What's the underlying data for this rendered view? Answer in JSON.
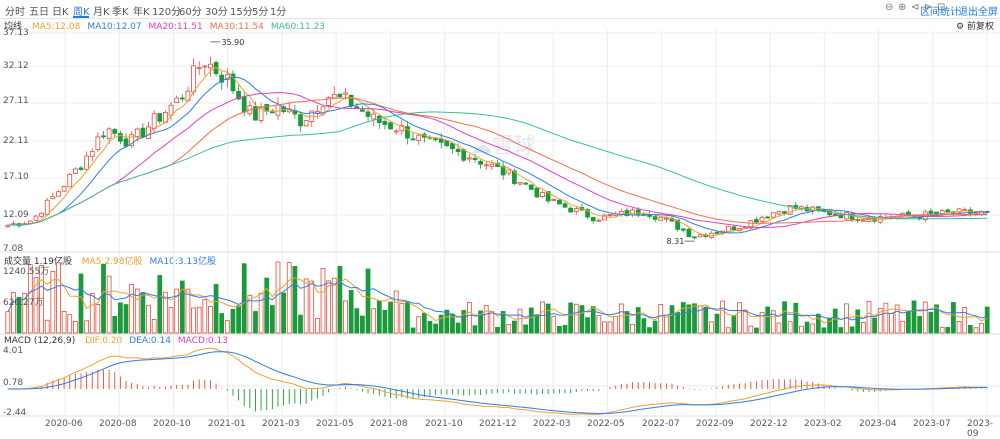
{
  "tabs": [
    {
      "label": "分时"
    },
    {
      "label": "五日"
    },
    {
      "label": "日K"
    },
    {
      "label": "周K",
      "active": true
    },
    {
      "label": "月K"
    },
    {
      "label": "季K"
    },
    {
      "label": "年K"
    },
    {
      "label": "120分"
    },
    {
      "label": "60分"
    },
    {
      "label": "30分"
    },
    {
      "label": "15分"
    },
    {
      "label": "5分"
    },
    {
      "label": "1分"
    }
  ],
  "toolbar": {
    "tool_icons": [
      "zoom-out-icon",
      "zoom-in-icon",
      "prev-icon",
      "next-icon",
      "fullscreen-icon"
    ],
    "stats_label": "区间统计",
    "exit_label": "退出全屏",
    "adjust_label": "前复权",
    "settings_icon": "gear-icon"
  },
  "price_panel": {
    "legend_title": "均线",
    "ma": [
      {
        "label": "MA5:12.08",
        "color": "#f0a030"
      },
      {
        "label": "MA10:12.07",
        "color": "#2f7ee6"
      },
      {
        "label": "MA20:11.51",
        "color": "#e040c0"
      },
      {
        "label": "MA30:11.54",
        "color": "#f07050"
      },
      {
        "label": "MA60:11.23",
        "color": "#3cc090"
      }
    ],
    "y_labels": [
      "37.13",
      "32.12",
      "27.11",
      "22.11",
      "17.10",
      "12.09",
      "7.08"
    ],
    "max_label": "35.90",
    "min_label": "8.31",
    "watermark": "雪球"
  },
  "volume_panel": {
    "legend_title": "成交量 1.19亿股",
    "ma": [
      {
        "label": "MA5:2.98亿股",
        "color": "#f0a030"
      },
      {
        "label": "MA10:3.13亿股",
        "color": "#2f7ee6"
      }
    ],
    "y_labels": [
      "1240.55万",
      "620.27万"
    ]
  },
  "macd_panel": {
    "legend_title": "MACD (12,26,9)",
    "items": [
      {
        "label": "DIF:0.20",
        "color": "#f0a030"
      },
      {
        "label": "DEA:0.14",
        "color": "#2f7ee6"
      },
      {
        "label": "MACD:0.13",
        "color": "#e040c0"
      }
    ],
    "y_labels": [
      "4.01",
      "0.78",
      "-2.44"
    ]
  },
  "x_labels": [
    "2020-06",
    "2020-08",
    "2020-10",
    "2021-01",
    "2021-03",
    "2021-05",
    "2021-08",
    "2021-10",
    "2021-12",
    "2022-03",
    "2022-05",
    "2022-07",
    "2022-09",
    "2022-12",
    "2023-02",
    "2023-04",
    "2023-07",
    "2023-09"
  ],
  "colors": {
    "up": "#e44c3c",
    "down": "#1a9a3a",
    "accent": "#1e7be3",
    "grid": "#ececec"
  },
  "chart_data": {
    "type": "candlestick",
    "period": "weekly",
    "price_ylim": [
      7.08,
      37.13
    ],
    "period_high": 35.9,
    "period_low": 8.31,
    "close_path_anchors": [
      {
        "x": "2020-05",
        "y": 10.5
      },
      {
        "x": "2020-06",
        "y": 11.2
      },
      {
        "x": "2020-07",
        "y": 15.0
      },
      {
        "x": "2020-08",
        "y": 19.0
      },
      {
        "x": "2020-09",
        "y": 24.0
      },
      {
        "x": "2020-10",
        "y": 22.0
      },
      {
        "x": "2020-11",
        "y": 25.0
      },
      {
        "x": "2020-12",
        "y": 28.0
      },
      {
        "x": "2021-01",
        "y": 33.5
      },
      {
        "x": "2021-02",
        "y": 30.5
      },
      {
        "x": "2021-03",
        "y": 25.5
      },
      {
        "x": "2021-04",
        "y": 27.0
      },
      {
        "x": "2021-05",
        "y": 25.0
      },
      {
        "x": "2021-06",
        "y": 28.5
      },
      {
        "x": "2021-07",
        "y": 27.5
      },
      {
        "x": "2021-08",
        "y": 25.0
      },
      {
        "x": "2021-09",
        "y": 24.0
      },
      {
        "x": "2021-10",
        "y": 22.0
      },
      {
        "x": "2021-12",
        "y": 20.0
      },
      {
        "x": "2022-02",
        "y": 16.5
      },
      {
        "x": "2022-03",
        "y": 14.0
      },
      {
        "x": "2022-05",
        "y": 11.5
      },
      {
        "x": "2022-07",
        "y": 12.5
      },
      {
        "x": "2022-08",
        "y": 11.0
      },
      {
        "x": "2022-09",
        "y": 9.0
      },
      {
        "x": "2022-11",
        "y": 10.5
      },
      {
        "x": "2022-12",
        "y": 12.0
      },
      {
        "x": "2023-01",
        "y": 13.0
      },
      {
        "x": "2023-02",
        "y": 12.5
      },
      {
        "x": "2023-04",
        "y": 11.5
      },
      {
        "x": "2023-06",
        "y": 11.8
      },
      {
        "x": "2023-08",
        "y": 12.3
      },
      {
        "x": "2023-09",
        "y": 12.1
      }
    ],
    "volume_ylim": [
      0,
      12405500
    ],
    "macd_ylim": [
      -2.44,
      4.01
    ],
    "latest": {
      "ma5": 12.08,
      "ma10": 12.07,
      "ma20": 11.51,
      "ma30": 11.54,
      "ma60": 11.23,
      "volume": "1.19亿股",
      "vol_ma5": "2.98亿股",
      "vol_ma10": "3.13亿股",
      "dif": 0.2,
      "dea": 0.14,
      "macd": 0.13
    }
  }
}
